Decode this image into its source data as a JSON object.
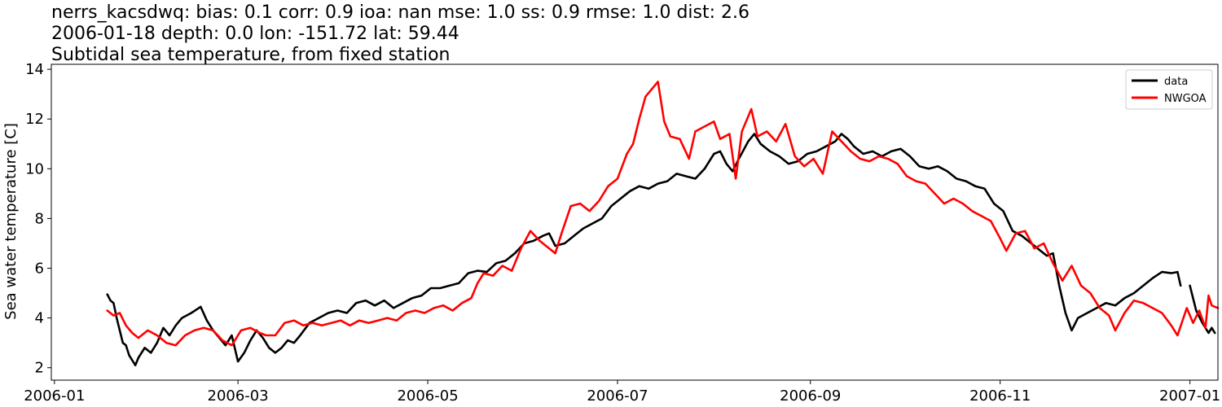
{
  "chart_data": {
    "type": "line",
    "title_lines": [
      "nerrs_kacsdwq: bias: 0.1  corr: 0.9  ioa: nan  mse: 1.0  ss: 0.9  rmse: 1.0  dist: 2.6",
      "2006-01-18 depth: 0.0 lon: -151.72 lat: 59.44",
      "Subtidal sea temperature, from fixed station"
    ],
    "xlabel": "",
    "ylabel": "Sea water temperature [C]",
    "xlim": [
      "2005-12-31",
      "2007-01-10"
    ],
    "ylim": [
      1.5,
      14.2
    ],
    "x_ticks": [
      "2006-01",
      "2006-03",
      "2006-05",
      "2006-07",
      "2006-09",
      "2006-11",
      "2007-01"
    ],
    "y_ticks": [
      2,
      4,
      6,
      8,
      10,
      12,
      14
    ],
    "grid": false,
    "legend_position": "top-right",
    "series": [
      {
        "name": "data",
        "color": "#000000",
        "points": [
          [
            "2006-01-18",
            4.95
          ],
          [
            "2006-01-19",
            4.7
          ],
          [
            "2006-01-20",
            4.6
          ],
          [
            "2006-01-21",
            4.0
          ],
          [
            "2006-01-22",
            3.5
          ],
          [
            "2006-01-23",
            3.0
          ],
          [
            "2006-01-24",
            2.9
          ],
          [
            "2006-01-25",
            2.5
          ],
          [
            "2006-01-26",
            2.3
          ],
          [
            "2006-01-27",
            2.1
          ],
          [
            "2006-01-28",
            2.4
          ],
          [
            "2006-01-30",
            2.8
          ],
          [
            "2006-02-01",
            2.6
          ],
          [
            "2006-02-03",
            3.0
          ],
          [
            "2006-02-05",
            3.6
          ],
          [
            "2006-02-07",
            3.3
          ],
          [
            "2006-02-09",
            3.7
          ],
          [
            "2006-02-11",
            4.0
          ],
          [
            "2006-02-14",
            4.2
          ],
          [
            "2006-02-17",
            4.45
          ],
          [
            "2006-02-19",
            3.9
          ],
          [
            "2006-02-21",
            3.5
          ],
          [
            "2006-02-23",
            3.2
          ],
          [
            "2006-02-25",
            2.9
          ],
          [
            "2006-02-27",
            3.3
          ],
          [
            "2006-03-01",
            2.25
          ],
          [
            "2006-03-03",
            2.6
          ],
          [
            "2006-03-05",
            3.1
          ],
          [
            "2006-03-07",
            3.5
          ],
          [
            "2006-03-09",
            3.2
          ],
          [
            "2006-03-11",
            2.8
          ],
          [
            "2006-03-13",
            2.6
          ],
          [
            "2006-03-15",
            2.8
          ],
          [
            "2006-03-17",
            3.1
          ],
          [
            "2006-03-19",
            3.0
          ],
          [
            "2006-03-21",
            3.3
          ],
          [
            "2006-03-24",
            3.8
          ],
          [
            "2006-03-27",
            4.0
          ],
          [
            "2006-03-30",
            4.2
          ],
          [
            "2006-04-02",
            4.3
          ],
          [
            "2006-04-05",
            4.2
          ],
          [
            "2006-04-08",
            4.6
          ],
          [
            "2006-04-11",
            4.7
          ],
          [
            "2006-04-14",
            4.5
          ],
          [
            "2006-04-17",
            4.7
          ],
          [
            "2006-04-20",
            4.4
          ],
          [
            "2006-04-23",
            4.6
          ],
          [
            "2006-04-26",
            4.8
          ],
          [
            "2006-04-29",
            4.9
          ],
          [
            "2006-05-02",
            5.2
          ],
          [
            "2006-05-05",
            5.2
          ],
          [
            "2006-05-08",
            5.3
          ],
          [
            "2006-05-11",
            5.4
          ],
          [
            "2006-05-14",
            5.8
          ],
          [
            "2006-05-17",
            5.9
          ],
          [
            "2006-05-20",
            5.85
          ],
          [
            "2006-05-23",
            6.2
          ],
          [
            "2006-05-26",
            6.3
          ],
          [
            "2006-05-29",
            6.6
          ],
          [
            "2006-06-01",
            7.0
          ],
          [
            "2006-06-04",
            7.1
          ],
          [
            "2006-06-07",
            7.3
          ],
          [
            "2006-06-09",
            7.4
          ],
          [
            "2006-06-11",
            6.9
          ],
          [
            "2006-06-14",
            7.0
          ],
          [
            "2006-06-17",
            7.3
          ],
          [
            "2006-06-20",
            7.6
          ],
          [
            "2006-06-23",
            7.8
          ],
          [
            "2006-06-26",
            8.0
          ],
          [
            "2006-06-29",
            8.5
          ],
          [
            "2006-07-02",
            8.8
          ],
          [
            "2006-07-05",
            9.1
          ],
          [
            "2006-07-08",
            9.3
          ],
          [
            "2006-07-11",
            9.2
          ],
          [
            "2006-07-14",
            9.4
          ],
          [
            "2006-07-17",
            9.5
          ],
          [
            "2006-07-20",
            9.8
          ],
          [
            "2006-07-23",
            9.7
          ],
          [
            "2006-07-26",
            9.6
          ],
          [
            "2006-07-29",
            10.0
          ],
          [
            "2006-08-01",
            10.6
          ],
          [
            "2006-08-03",
            10.7
          ],
          [
            "2006-08-05",
            10.2
          ],
          [
            "2006-08-07",
            9.9
          ],
          [
            "2006-08-09",
            10.4
          ],
          [
            "2006-08-12",
            11.1
          ],
          [
            "2006-08-14",
            11.4
          ],
          [
            "2006-08-16",
            11.0
          ],
          [
            "2006-08-19",
            10.7
          ],
          [
            "2006-08-22",
            10.5
          ],
          [
            "2006-08-25",
            10.2
          ],
          [
            "2006-08-28",
            10.3
          ],
          [
            "2006-08-31",
            10.6
          ],
          [
            "2006-09-03",
            10.7
          ],
          [
            "2006-09-06",
            10.9
          ],
          [
            "2006-09-09",
            11.1
          ],
          [
            "2006-09-11",
            11.4
          ],
          [
            "2006-09-13",
            11.2
          ],
          [
            "2006-09-15",
            10.9
          ],
          [
            "2006-09-18",
            10.6
          ],
          [
            "2006-09-21",
            10.7
          ],
          [
            "2006-09-24",
            10.5
          ],
          [
            "2006-09-27",
            10.7
          ],
          [
            "2006-09-30",
            10.8
          ],
          [
            "2006-10-03",
            10.5
          ],
          [
            "2006-10-06",
            10.1
          ],
          [
            "2006-10-09",
            10.0
          ],
          [
            "2006-10-12",
            10.1
          ],
          [
            "2006-10-15",
            9.9
          ],
          [
            "2006-10-18",
            9.6
          ],
          [
            "2006-10-21",
            9.5
          ],
          [
            "2006-10-24",
            9.3
          ],
          [
            "2006-10-27",
            9.2
          ],
          [
            "2006-10-30",
            8.6
          ],
          [
            "2006-11-02",
            8.3
          ],
          [
            "2006-11-05",
            7.5
          ],
          [
            "2006-11-08",
            7.3
          ],
          [
            "2006-11-11",
            7.0
          ],
          [
            "2006-11-14",
            6.7
          ],
          [
            "2006-11-16",
            6.5
          ],
          [
            "2006-11-18",
            6.6
          ],
          [
            "2006-11-20",
            5.3
          ],
          [
            "2006-11-22",
            4.2
          ],
          [
            "2006-11-24",
            3.5
          ],
          [
            "2006-11-26",
            4.0
          ],
          [
            "2006-11-29",
            4.2
          ],
          [
            "2006-12-02",
            4.4
          ],
          [
            "2006-12-05",
            4.6
          ],
          [
            "2006-12-08",
            4.5
          ],
          [
            "2006-12-11",
            4.8
          ],
          [
            "2006-12-14",
            5.0
          ],
          [
            "2006-12-17",
            5.3
          ],
          [
            "2006-12-20",
            5.6
          ],
          [
            "2006-12-23",
            5.85
          ],
          [
            "2006-12-26",
            5.8
          ],
          [
            "2006-12-28",
            5.85
          ],
          [
            "2006-12-29",
            5.3
          ],
          null,
          [
            "2007-01-01",
            5.3
          ],
          [
            "2007-01-03",
            4.3
          ],
          [
            "2007-01-05",
            3.8
          ],
          [
            "2007-01-07",
            3.4
          ],
          [
            "2007-01-08",
            3.6
          ],
          [
            "2007-01-09",
            3.4
          ]
        ]
      },
      {
        "name": "NWGOA",
        "color": "#ff0000",
        "points": [
          [
            "2006-01-18",
            4.3
          ],
          [
            "2006-01-20",
            4.1
          ],
          [
            "2006-01-22",
            4.2
          ],
          [
            "2006-01-24",
            3.7
          ],
          [
            "2006-01-26",
            3.4
          ],
          [
            "2006-01-28",
            3.2
          ],
          [
            "2006-01-31",
            3.5
          ],
          [
            "2006-02-03",
            3.3
          ],
          [
            "2006-02-06",
            3.0
          ],
          [
            "2006-02-09",
            2.9
          ],
          [
            "2006-02-12",
            3.3
          ],
          [
            "2006-02-15",
            3.5
          ],
          [
            "2006-02-18",
            3.6
          ],
          [
            "2006-02-21",
            3.5
          ],
          [
            "2006-02-24",
            3.1
          ],
          [
            "2006-02-27",
            2.9
          ],
          [
            "2006-03-02",
            3.5
          ],
          [
            "2006-03-05",
            3.6
          ],
          [
            "2006-03-08",
            3.4
          ],
          [
            "2006-03-10",
            3.3
          ],
          [
            "2006-03-13",
            3.3
          ],
          [
            "2006-03-16",
            3.8
          ],
          [
            "2006-03-19",
            3.9
          ],
          [
            "2006-03-22",
            3.7
          ],
          [
            "2006-03-25",
            3.8
          ],
          [
            "2006-03-28",
            3.7
          ],
          [
            "2006-03-31",
            3.8
          ],
          [
            "2006-04-03",
            3.9
          ],
          [
            "2006-04-06",
            3.7
          ],
          [
            "2006-04-09",
            3.9
          ],
          [
            "2006-04-12",
            3.8
          ],
          [
            "2006-04-15",
            3.9
          ],
          [
            "2006-04-18",
            4.0
          ],
          [
            "2006-04-21",
            3.9
          ],
          [
            "2006-04-24",
            4.2
          ],
          [
            "2006-04-27",
            4.3
          ],
          [
            "2006-04-30",
            4.2
          ],
          [
            "2006-05-03",
            4.4
          ],
          [
            "2006-05-06",
            4.5
          ],
          [
            "2006-05-09",
            4.3
          ],
          [
            "2006-05-12",
            4.6
          ],
          [
            "2006-05-15",
            4.8
          ],
          [
            "2006-05-17",
            5.4
          ],
          [
            "2006-05-19",
            5.8
          ],
          [
            "2006-05-22",
            5.7
          ],
          [
            "2006-05-25",
            6.1
          ],
          [
            "2006-05-28",
            5.9
          ],
          [
            "2006-05-31",
            6.8
          ],
          [
            "2006-06-03",
            7.5
          ],
          [
            "2006-06-06",
            7.1
          ],
          [
            "2006-06-09",
            6.8
          ],
          [
            "2006-06-11",
            6.6
          ],
          [
            "2006-06-13",
            7.4
          ],
          [
            "2006-06-16",
            8.5
          ],
          [
            "2006-06-19",
            8.6
          ],
          [
            "2006-06-22",
            8.3
          ],
          [
            "2006-06-25",
            8.7
          ],
          [
            "2006-06-28",
            9.3
          ],
          [
            "2006-07-01",
            9.6
          ],
          [
            "2006-07-04",
            10.6
          ],
          [
            "2006-07-06",
            11.0
          ],
          [
            "2006-07-08",
            12.0
          ],
          [
            "2006-07-10",
            12.9
          ],
          [
            "2006-07-12",
            13.2
          ],
          [
            "2006-07-14",
            13.5
          ],
          [
            "2006-07-16",
            11.9
          ],
          [
            "2006-07-18",
            11.3
          ],
          [
            "2006-07-21",
            11.2
          ],
          [
            "2006-07-24",
            10.4
          ],
          [
            "2006-07-26",
            11.5
          ],
          [
            "2006-07-29",
            11.7
          ],
          [
            "2006-08-01",
            11.9
          ],
          [
            "2006-08-03",
            11.2
          ],
          [
            "2006-08-06",
            11.4
          ],
          [
            "2006-08-08",
            9.6
          ],
          [
            "2006-08-10",
            11.5
          ],
          [
            "2006-08-13",
            12.4
          ],
          [
            "2006-08-15",
            11.3
          ],
          [
            "2006-08-18",
            11.5
          ],
          [
            "2006-08-21",
            11.1
          ],
          [
            "2006-08-24",
            11.8
          ],
          [
            "2006-08-27",
            10.5
          ],
          [
            "2006-08-30",
            10.1
          ],
          [
            "2006-09-02",
            10.4
          ],
          [
            "2006-09-05",
            9.8
          ],
          [
            "2006-09-08",
            11.5
          ],
          [
            "2006-09-11",
            11.1
          ],
          [
            "2006-09-14",
            10.7
          ],
          [
            "2006-09-17",
            10.4
          ],
          [
            "2006-09-20",
            10.3
          ],
          [
            "2006-09-23",
            10.5
          ],
          [
            "2006-09-26",
            10.4
          ],
          [
            "2006-09-29",
            10.2
          ],
          [
            "2006-10-02",
            9.7
          ],
          [
            "2006-10-05",
            9.5
          ],
          [
            "2006-10-08",
            9.4
          ],
          [
            "2006-10-11",
            9.0
          ],
          [
            "2006-10-14",
            8.6
          ],
          [
            "2006-10-17",
            8.8
          ],
          [
            "2006-10-20",
            8.6
          ],
          [
            "2006-10-23",
            8.3
          ],
          [
            "2006-10-26",
            8.1
          ],
          [
            "2006-10-29",
            7.9
          ],
          [
            "2006-11-01",
            7.2
          ],
          [
            "2006-11-03",
            6.7
          ],
          [
            "2006-11-06",
            7.4
          ],
          [
            "2006-11-09",
            7.5
          ],
          [
            "2006-11-12",
            6.8
          ],
          [
            "2006-11-15",
            7.0
          ],
          [
            "2006-11-18",
            6.2
          ],
          [
            "2006-11-21",
            5.5
          ],
          [
            "2006-11-24",
            6.1
          ],
          [
            "2006-11-27",
            5.3
          ],
          [
            "2006-11-30",
            5.0
          ],
          [
            "2006-12-03",
            4.4
          ],
          [
            "2006-12-06",
            4.1
          ],
          [
            "2006-12-08",
            3.5
          ],
          [
            "2006-12-11",
            4.2
          ],
          [
            "2006-12-14",
            4.7
          ],
          [
            "2006-12-17",
            4.6
          ],
          [
            "2006-12-20",
            4.4
          ],
          [
            "2006-12-23",
            4.2
          ],
          [
            "2006-12-26",
            3.7
          ],
          [
            "2006-12-28",
            3.3
          ],
          [
            "2006-12-31",
            4.4
          ],
          [
            "2007-01-02",
            3.8
          ],
          [
            "2007-01-04",
            4.3
          ],
          [
            "2007-01-06",
            3.6
          ],
          [
            "2007-01-07",
            4.9
          ],
          [
            "2007-01-08",
            4.5
          ],
          [
            "2007-01-10",
            4.4
          ]
        ]
      }
    ]
  }
}
